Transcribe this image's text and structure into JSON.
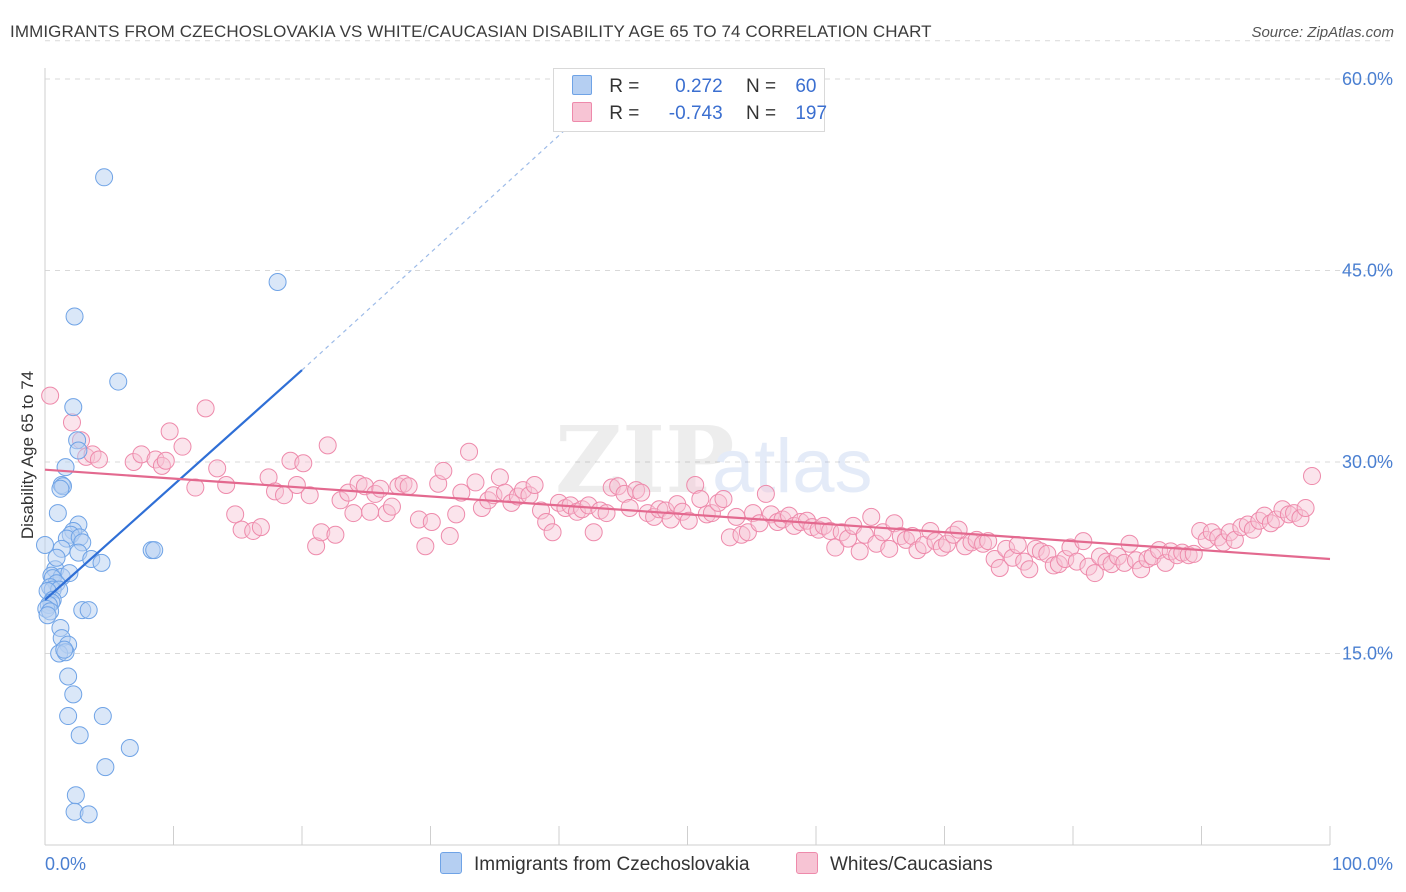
{
  "header": {
    "title": "IMMIGRANTS FROM CZECHOSLOVAKIA VS WHITE/CAUCASIAN DISABILITY AGE 65 TO 74 CORRELATION CHART",
    "source": "Source: ZipAtlas.com"
  },
  "watermark": {
    "zip": "ZIP",
    "atlas": "atlas"
  },
  "colors": {
    "blue": "#6fa3e6",
    "blue_fill": "#b5cff2",
    "blue_line": "#2f6fd6",
    "pink": "#ee8aab",
    "pink_fill": "#f7c4d4",
    "pink_line": "#e3698f",
    "grid": "#d9d9d9",
    "tick_text": "#4a7fd1"
  },
  "legend": {
    "rows": [
      {
        "r_label": "R =",
        "r_value": " 0.272",
        "n_label": "N =",
        "n_value": "60"
      },
      {
        "r_label": "R =",
        "r_value": "-0.743",
        "n_label": "N =",
        "n_value": "197"
      }
    ]
  },
  "bottom_legend": {
    "series_a": "Immigrants from Czechoslovakia",
    "series_b": "Whites/Caucasians"
  },
  "chart_data": {
    "type": "scatter",
    "title": "IMMIGRANTS FROM CZECHOSLOVAKIA VS WHITE/CAUCASIAN DISABILITY AGE 65 TO 74 CORRELATION CHART",
    "xlabel": "",
    "ylabel": "Disability Age 65 to 74",
    "xlim": [
      0,
      100
    ],
    "ylim": [
      0,
      63
    ],
    "x_tick_labels": [
      "0.0%",
      "100.0%"
    ],
    "y_ticks": [
      15,
      30,
      45,
      60
    ],
    "y_tick_labels": [
      "15.0%",
      "30.0%",
      "45.0%",
      "60.0%"
    ],
    "series": [
      {
        "name": "Immigrants from Czechoslovakia",
        "R": 0.272,
        "N": 60,
        "trend": {
          "x0": 0,
          "y0": 19.2,
          "x1": 20,
          "y1": 37.2,
          "dashed_to_x": 41,
          "dashed_to_y": 56.5
        },
        "points": [
          [
            4.6,
            52.3
          ],
          [
            18.1,
            44.1
          ],
          [
            2.3,
            41.4
          ],
          [
            5.7,
            36.3
          ],
          [
            2.2,
            34.3
          ],
          [
            2.5,
            31.7
          ],
          [
            2.6,
            30.9
          ],
          [
            1.6,
            29.6
          ],
          [
            1.3,
            28.2
          ],
          [
            1.4,
            28.1
          ],
          [
            1.2,
            27.9
          ],
          [
            1.0,
            26.0
          ],
          [
            2.6,
            25.1
          ],
          [
            2.2,
            24.6
          ],
          [
            2.0,
            24.3
          ],
          [
            1.7,
            24.0
          ],
          [
            2.7,
            24.1
          ],
          [
            2.9,
            23.7
          ],
          [
            1.3,
            23.2
          ],
          [
            2.6,
            22.9
          ],
          [
            0.0,
            23.5
          ],
          [
            8.3,
            23.1
          ],
          [
            8.5,
            23.1
          ],
          [
            3.6,
            22.4
          ],
          [
            4.4,
            22.1
          ],
          [
            0.8,
            21.6
          ],
          [
            0.5,
            21.1
          ],
          [
            1.3,
            21.0
          ],
          [
            0.6,
            20.9
          ],
          [
            0.9,
            20.5
          ],
          [
            0.4,
            20.2
          ],
          [
            0.6,
            20.0
          ],
          [
            1.1,
            20.0
          ],
          [
            0.2,
            19.9
          ],
          [
            0.6,
            19.2
          ],
          [
            0.5,
            19.0
          ],
          [
            0.3,
            18.8
          ],
          [
            0.1,
            18.5
          ],
          [
            0.4,
            18.3
          ],
          [
            0.2,
            18.0
          ],
          [
            2.9,
            18.4
          ],
          [
            3.4,
            18.4
          ],
          [
            1.2,
            17.0
          ],
          [
            1.3,
            16.2
          ],
          [
            1.8,
            15.7
          ],
          [
            1.1,
            15.0
          ],
          [
            1.6,
            15.1
          ],
          [
            1.5,
            15.3
          ],
          [
            1.8,
            13.2
          ],
          [
            2.2,
            11.8
          ],
          [
            1.8,
            10.1
          ],
          [
            4.5,
            10.1
          ],
          [
            2.7,
            8.6
          ],
          [
            6.6,
            7.6
          ],
          [
            4.7,
            6.1
          ],
          [
            2.4,
            3.9
          ],
          [
            2.3,
            2.6
          ],
          [
            3.4,
            2.4
          ],
          [
            1.9,
            21.3
          ],
          [
            0.9,
            22.5
          ]
        ]
      },
      {
        "name": "Whites/Caucasians",
        "R": -0.743,
        "N": 197,
        "trend": {
          "x0": 0,
          "y0": 29.4,
          "x1": 100,
          "y1": 22.4
        },
        "points": [
          [
            0.4,
            35.2
          ],
          [
            2.1,
            33.1
          ],
          [
            12.5,
            34.2
          ],
          [
            2.8,
            31.7
          ],
          [
            3.2,
            30.4
          ],
          [
            3.7,
            30.6
          ],
          [
            4.2,
            30.2
          ],
          [
            6.9,
            30.0
          ],
          [
            7.5,
            30.6
          ],
          [
            8.6,
            30.2
          ],
          [
            9.1,
            29.7
          ],
          [
            9.4,
            30.1
          ],
          [
            9.7,
            32.4
          ],
          [
            10.7,
            31.2
          ],
          [
            11.7,
            28.0
          ],
          [
            13.4,
            29.5
          ],
          [
            14.1,
            28.2
          ],
          [
            14.8,
            25.9
          ],
          [
            15.3,
            24.7
          ],
          [
            16.2,
            24.6
          ],
          [
            16.8,
            24.9
          ],
          [
            17.4,
            28.8
          ],
          [
            17.9,
            27.7
          ],
          [
            18.6,
            27.4
          ],
          [
            19.1,
            30.1
          ],
          [
            19.6,
            28.2
          ],
          [
            20.1,
            29.9
          ],
          [
            20.6,
            27.4
          ],
          [
            21.1,
            23.4
          ],
          [
            21.5,
            24.5
          ],
          [
            22.0,
            31.3
          ],
          [
            22.6,
            24.3
          ],
          [
            23.0,
            27.0
          ],
          [
            23.6,
            27.6
          ],
          [
            24.0,
            26.0
          ],
          [
            24.4,
            28.3
          ],
          [
            24.9,
            28.1
          ],
          [
            25.3,
            26.1
          ],
          [
            25.7,
            27.5
          ],
          [
            26.1,
            27.9
          ],
          [
            26.6,
            26.0
          ],
          [
            27.0,
            26.5
          ],
          [
            27.5,
            28.1
          ],
          [
            27.9,
            28.3
          ],
          [
            28.3,
            28.1
          ],
          [
            29.1,
            25.5
          ],
          [
            29.6,
            23.4
          ],
          [
            30.1,
            25.3
          ],
          [
            30.6,
            28.3
          ],
          [
            31.0,
            29.3
          ],
          [
            31.5,
            24.2
          ],
          [
            32.0,
            25.9
          ],
          [
            32.4,
            27.6
          ],
          [
            33.0,
            30.8
          ],
          [
            33.5,
            28.4
          ],
          [
            34.0,
            26.4
          ],
          [
            34.5,
            27.0
          ],
          [
            34.9,
            27.4
          ],
          [
            35.4,
            28.8
          ],
          [
            35.8,
            27.6
          ],
          [
            36.3,
            26.8
          ],
          [
            36.8,
            27.3
          ],
          [
            37.2,
            27.8
          ],
          [
            37.7,
            27.4
          ],
          [
            38.1,
            28.2
          ],
          [
            38.6,
            26.2
          ],
          [
            39.0,
            25.3
          ],
          [
            39.5,
            24.5
          ],
          [
            40.0,
            26.8
          ],
          [
            40.5,
            26.4
          ],
          [
            40.9,
            26.6
          ],
          [
            41.4,
            26.1
          ],
          [
            41.8,
            26.3
          ],
          [
            42.3,
            26.6
          ],
          [
            42.7,
            24.5
          ],
          [
            43.2,
            26.2
          ],
          [
            43.7,
            26.0
          ],
          [
            44.1,
            28.0
          ],
          [
            44.6,
            28.1
          ],
          [
            45.1,
            27.5
          ],
          [
            45.5,
            26.4
          ],
          [
            46.0,
            27.8
          ],
          [
            46.4,
            27.6
          ],
          [
            46.9,
            26.0
          ],
          [
            47.4,
            25.7
          ],
          [
            47.8,
            26.3
          ],
          [
            48.3,
            26.2
          ],
          [
            48.7,
            25.5
          ],
          [
            49.2,
            26.7
          ],
          [
            49.6,
            26.1
          ],
          [
            50.1,
            25.4
          ],
          [
            50.6,
            28.2
          ],
          [
            51.0,
            27.1
          ],
          [
            51.5,
            25.9
          ],
          [
            51.9,
            26.0
          ],
          [
            52.4,
            26.8
          ],
          [
            52.8,
            27.1
          ],
          [
            53.3,
            24.1
          ],
          [
            53.8,
            25.7
          ],
          [
            54.2,
            24.3
          ],
          [
            54.7,
            24.5
          ],
          [
            55.1,
            26.0
          ],
          [
            55.6,
            25.2
          ],
          [
            56.1,
            27.5
          ],
          [
            56.5,
            25.9
          ],
          [
            57.0,
            25.3
          ],
          [
            57.4,
            25.5
          ],
          [
            57.9,
            25.8
          ],
          [
            58.3,
            25.0
          ],
          [
            58.8,
            25.3
          ],
          [
            59.3,
            25.4
          ],
          [
            59.7,
            24.9
          ],
          [
            60.2,
            24.7
          ],
          [
            60.6,
            25.0
          ],
          [
            61.1,
            24.6
          ],
          [
            61.5,
            23.3
          ],
          [
            62.0,
            24.5
          ],
          [
            62.5,
            24.0
          ],
          [
            62.9,
            25.0
          ],
          [
            63.4,
            23.0
          ],
          [
            63.8,
            24.3
          ],
          [
            64.3,
            25.7
          ],
          [
            64.7,
            23.6
          ],
          [
            65.2,
            24.5
          ],
          [
            65.7,
            23.2
          ],
          [
            66.1,
            25.2
          ],
          [
            66.6,
            24.2
          ],
          [
            67.0,
            23.9
          ],
          [
            67.5,
            24.2
          ],
          [
            67.9,
            23.1
          ],
          [
            68.4,
            23.5
          ],
          [
            68.9,
            24.6
          ],
          [
            69.3,
            23.8
          ],
          [
            69.8,
            23.3
          ],
          [
            70.2,
            23.6
          ],
          [
            70.7,
            24.3
          ],
          [
            71.1,
            24.7
          ],
          [
            71.6,
            23.4
          ],
          [
            72.1,
            23.7
          ],
          [
            72.5,
            23.9
          ],
          [
            73.0,
            23.6
          ],
          [
            73.4,
            23.8
          ],
          [
            73.9,
            22.4
          ],
          [
            74.3,
            21.7
          ],
          [
            74.8,
            23.2
          ],
          [
            75.3,
            22.5
          ],
          [
            75.7,
            23.5
          ],
          [
            76.2,
            22.2
          ],
          [
            76.6,
            21.6
          ],
          [
            77.1,
            23.2
          ],
          [
            77.5,
            23.0
          ],
          [
            78.0,
            22.8
          ],
          [
            78.5,
            21.9
          ],
          [
            78.9,
            22.0
          ],
          [
            79.4,
            22.4
          ],
          [
            79.8,
            23.3
          ],
          [
            80.3,
            22.2
          ],
          [
            80.8,
            23.8
          ],
          [
            81.2,
            21.8
          ],
          [
            81.7,
            21.3
          ],
          [
            82.1,
            22.6
          ],
          [
            82.6,
            22.2
          ],
          [
            83.0,
            22.0
          ],
          [
            83.5,
            22.6
          ],
          [
            84.0,
            22.1
          ],
          [
            84.4,
            23.6
          ],
          [
            84.9,
            22.3
          ],
          [
            85.3,
            21.6
          ],
          [
            85.8,
            22.4
          ],
          [
            86.2,
            22.6
          ],
          [
            86.7,
            23.1
          ],
          [
            87.2,
            22.1
          ],
          [
            87.6,
            23.0
          ],
          [
            88.1,
            22.7
          ],
          [
            88.5,
            22.9
          ],
          [
            89.0,
            22.7
          ],
          [
            89.4,
            22.8
          ],
          [
            89.9,
            24.6
          ],
          [
            90.4,
            23.9
          ],
          [
            90.8,
            24.5
          ],
          [
            91.3,
            24.1
          ],
          [
            91.7,
            23.7
          ],
          [
            92.2,
            24.5
          ],
          [
            92.6,
            23.9
          ],
          [
            93.1,
            24.9
          ],
          [
            93.6,
            25.1
          ],
          [
            94.0,
            24.7
          ],
          [
            94.5,
            25.4
          ],
          [
            94.9,
            25.8
          ],
          [
            95.4,
            25.2
          ],
          [
            95.8,
            25.5
          ],
          [
            96.3,
            26.3
          ],
          [
            96.8,
            25.9
          ],
          [
            97.2,
            26.0
          ],
          [
            97.7,
            25.6
          ],
          [
            98.1,
            26.4
          ],
          [
            98.6,
            28.9
          ]
        ]
      }
    ]
  }
}
